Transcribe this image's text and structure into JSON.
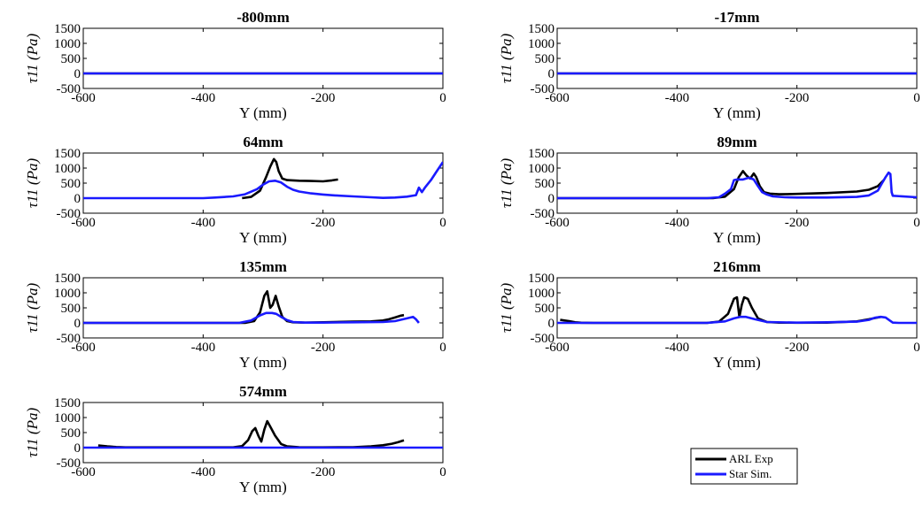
{
  "legend": [
    {
      "name": "ARL Exp",
      "color": "#000000"
    },
    {
      "name": "Star Sim.",
      "color": "#1a1aff"
    }
  ],
  "chart_data": [
    {
      "type": "line",
      "title": "-800mm",
      "xlabel": "Y (mm)",
      "ylabel": "τ11 (Pa)",
      "xlim": [
        -600,
        0
      ],
      "ylim": [
        -500,
        1500
      ],
      "xticks": [
        -600,
        -400,
        -200,
        0
      ],
      "yticks": [
        1500,
        1000,
        500,
        0,
        -500
      ],
      "grid": false,
      "series": [
        {
          "name": "ARL Exp",
          "color": "#000000",
          "x": [
            -600,
            0
          ],
          "y": [
            0,
            0
          ]
        },
        {
          "name": "Star Sim.",
          "color": "#1a1aff",
          "x": [
            -600,
            0
          ],
          "y": [
            0,
            0
          ]
        }
      ]
    },
    {
      "type": "line",
      "title": "-17mm",
      "xlabel": "Y (mm)",
      "ylabel": "τ11 (Pa)",
      "xlim": [
        -600,
        0
      ],
      "ylim": [
        -500,
        1500
      ],
      "xticks": [
        -600,
        -400,
        -200,
        0
      ],
      "yticks": [
        1500,
        1000,
        500,
        0,
        -500
      ],
      "grid": false,
      "series": [
        {
          "name": "ARL Exp",
          "color": "#000000",
          "x": [
            -600,
            0
          ],
          "y": [
            0,
            0
          ]
        },
        {
          "name": "Star Sim.",
          "color": "#1a1aff",
          "x": [
            -600,
            0
          ],
          "y": [
            0,
            0
          ]
        }
      ]
    },
    {
      "type": "line",
      "title": "64mm",
      "xlabel": "Y (mm)",
      "ylabel": "τ11 (Pa)",
      "xlim": [
        -600,
        0
      ],
      "ylim": [
        -500,
        1500
      ],
      "xticks": [
        -600,
        -400,
        -200,
        0
      ],
      "yticks": [
        1500,
        1000,
        500,
        0,
        -500
      ],
      "grid": false,
      "series": [
        {
          "name": "ARL Exp",
          "color": "#000000",
          "x": [
            -335,
            -320,
            -305,
            -295,
            -288,
            -282,
            -278,
            -274,
            -268,
            -260,
            -250,
            -240,
            -220,
            -200,
            -185,
            -175
          ],
          "y": [
            0,
            40,
            250,
            700,
            1050,
            1300,
            1200,
            900,
            650,
            600,
            590,
            580,
            570,
            560,
            590,
            620
          ]
        },
        {
          "name": "Star Sim.",
          "color": "#1a1aff",
          "x": [
            -600,
            -400,
            -380,
            -350,
            -330,
            -310,
            -300,
            -290,
            -280,
            -270,
            -260,
            -250,
            -240,
            -220,
            -200,
            -180,
            -150,
            -120,
            -100,
            -80,
            -60,
            -45,
            -40,
            -35,
            -30,
            -20,
            -10,
            0
          ],
          "y": [
            0,
            0,
            20,
            60,
            130,
            300,
            450,
            560,
            580,
            520,
            380,
            280,
            220,
            160,
            120,
            90,
            60,
            30,
            10,
            20,
            50,
            100,
            350,
            200,
            350,
            600,
            900,
            1200
          ]
        }
      ]
    },
    {
      "type": "line",
      "title": "89mm",
      "xlabel": "Y (mm)",
      "ylabel": "τ11 (Pa)",
      "xlim": [
        -600,
        0
      ],
      "ylim": [
        -500,
        1500
      ],
      "xticks": [
        -600,
        -400,
        -200,
        0
      ],
      "yticks": [
        1500,
        1000,
        500,
        0,
        -500
      ],
      "grid": false,
      "series": [
        {
          "name": "ARL Exp",
          "color": "#000000",
          "x": [
            -600,
            -340,
            -320,
            -305,
            -297,
            -290,
            -284,
            -278,
            -272,
            -268,
            -262,
            -255,
            -245,
            -230,
            -200,
            -150,
            -100,
            -80,
            -65,
            -55
          ],
          "y": [
            0,
            0,
            50,
            300,
            700,
            900,
            750,
            650,
            820,
            700,
            400,
            200,
            150,
            130,
            140,
            170,
            220,
            280,
            400,
            600
          ]
        },
        {
          "name": "Star Sim.",
          "color": "#1a1aff",
          "x": [
            -600,
            -350,
            -330,
            -320,
            -310,
            -305,
            -300,
            -290,
            -280,
            -272,
            -265,
            -258,
            -250,
            -240,
            -220,
            -200,
            -150,
            -100,
            -80,
            -65,
            -58,
            -52,
            -47,
            -44,
            -42,
            -40,
            0
          ],
          "y": [
            0,
            0,
            30,
            150,
            300,
            600,
            620,
            620,
            680,
            620,
            400,
            200,
            120,
            60,
            30,
            20,
            20,
            40,
            90,
            250,
            500,
            700,
            850,
            800,
            200,
            80,
            30
          ]
        }
      ]
    },
    {
      "type": "line",
      "title": "135mm",
      "xlabel": "Y (mm)",
      "ylabel": "τ11 (Pa)",
      "xlim": [
        -600,
        0
      ],
      "ylim": [
        -500,
        1500
      ],
      "xticks": [
        -600,
        -400,
        -200,
        0
      ],
      "yticks": [
        1500,
        1000,
        500,
        0,
        -500
      ],
      "grid": false,
      "series": [
        {
          "name": "ARL Exp",
          "color": "#000000",
          "x": [
            -600,
            -330,
            -315,
            -305,
            -298,
            -293,
            -288,
            -284,
            -279,
            -274,
            -268,
            -260,
            -250,
            -230,
            -200,
            -150,
            -120,
            -100,
            -90,
            -80,
            -70,
            -65
          ],
          "y": [
            0,
            0,
            60,
            350,
            900,
            1050,
            500,
            600,
            900,
            550,
            200,
            60,
            20,
            10,
            20,
            40,
            50,
            80,
            120,
            180,
            240,
            260
          ]
        },
        {
          "name": "Star Sim.",
          "color": "#1a1aff",
          "x": [
            -600,
            -340,
            -320,
            -305,
            -295,
            -285,
            -278,
            -270,
            -260,
            -250,
            -230,
            -200,
            -150,
            -100,
            -80,
            -60,
            -50,
            -45,
            -40
          ],
          "y": [
            0,
            0,
            80,
            250,
            330,
            330,
            300,
            200,
            90,
            30,
            10,
            10,
            20,
            30,
            60,
            150,
            200,
            120,
            0
          ]
        }
      ]
    },
    {
      "type": "line",
      "title": "216mm",
      "xlabel": "Y (mm)",
      "ylabel": "τ11 (Pa)",
      "xlim": [
        -600,
        0
      ],
      "ylim": [
        -500,
        1500
      ],
      "xticks": [
        -600,
        -400,
        -200,
        0
      ],
      "yticks": [
        1500,
        1000,
        500,
        0,
        -500
      ],
      "grid": false,
      "series": [
        {
          "name": "ARL Exp",
          "color": "#000000",
          "x": [
            -595,
            -580,
            -570,
            -560,
            -540,
            -350,
            -330,
            -315,
            -305,
            -300,
            -296,
            -292,
            -288,
            -282,
            -275,
            -265,
            -250,
            -230,
            -200,
            -150,
            -100,
            -80,
            -60
          ],
          "y": [
            100,
            60,
            20,
            5,
            0,
            0,
            40,
            300,
            800,
            850,
            200,
            600,
            850,
            800,
            500,
            150,
            30,
            10,
            5,
            10,
            50,
            120,
            200
          ]
        },
        {
          "name": "Star Sim.",
          "color": "#1a1aff",
          "x": [
            -600,
            -350,
            -320,
            -305,
            -295,
            -285,
            -270,
            -250,
            -200,
            -150,
            -100,
            -80,
            -70,
            -60,
            -52,
            -45,
            -40,
            -30,
            0
          ],
          "y": [
            0,
            0,
            50,
            150,
            200,
            200,
            120,
            30,
            10,
            20,
            40,
            100,
            170,
            200,
            180,
            80,
            10,
            0,
            0
          ]
        }
      ]
    },
    {
      "type": "line",
      "title": "574mm",
      "xlabel": "Y (mm)",
      "ylabel": "τ11 (Pa)",
      "xlim": [
        -600,
        0
      ],
      "ylim": [
        -500,
        1500
      ],
      "xticks": [
        -600,
        -400,
        -200,
        0
      ],
      "yticks": [
        1500,
        1000,
        500,
        0,
        -500
      ],
      "grid": false,
      "series": [
        {
          "name": "ARL Exp",
          "color": "#000000",
          "x": [
            -575,
            -560,
            -545,
            -530,
            -350,
            -335,
            -325,
            -318,
            -313,
            -308,
            -303,
            -298,
            -293,
            -288,
            -280,
            -270,
            -260,
            -240,
            -200,
            -150,
            -120,
            -100,
            -85,
            -75,
            -65
          ],
          "y": [
            70,
            40,
            20,
            10,
            10,
            50,
            250,
            550,
            650,
            400,
            200,
            600,
            880,
            700,
            400,
            120,
            40,
            15,
            10,
            15,
            40,
            80,
            130,
            180,
            240
          ]
        },
        {
          "name": "Star Sim.",
          "color": "#1a1aff",
          "x": [
            -600,
            0
          ],
          "y": [
            0,
            0
          ]
        }
      ]
    }
  ]
}
